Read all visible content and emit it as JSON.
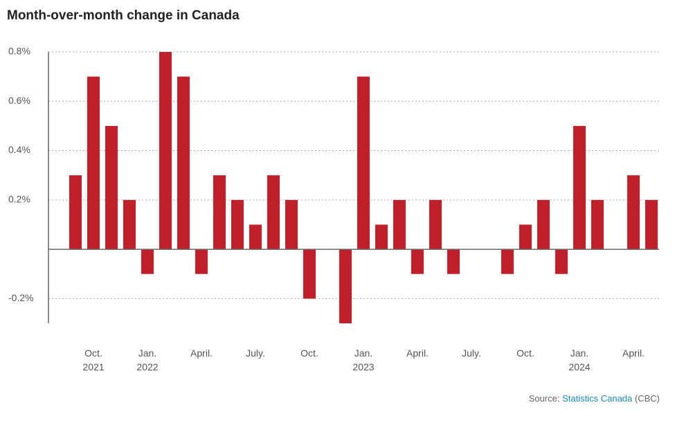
{
  "chart_data": {
    "type": "bar",
    "title": "Month-over-month change in Canada",
    "categories": [
      null,
      "Oct. 2021",
      null,
      null,
      "Jan. 2022",
      null,
      null,
      "April.",
      null,
      null,
      "July.",
      null,
      null,
      "Oct.",
      null,
      null,
      "Jan. 2023",
      null,
      null,
      "April.",
      null,
      null,
      "July.",
      null,
      null,
      "Oct.",
      null,
      null,
      "Jan. 2024",
      null,
      null,
      "April.",
      null
    ],
    "values": [
      0.3,
      0.7,
      0.5,
      0.2,
      -0.1,
      0.8,
      0.7,
      -0.1,
      0.3,
      0.2,
      0.1,
      0.3,
      0.2,
      -0.2,
      0,
      -0.3,
      0.7,
      0.1,
      0.2,
      -0.1,
      0.2,
      -0.1,
      0,
      0,
      -0.1,
      0.1,
      0.2,
      -0.1,
      0.5,
      0.2,
      0,
      0.3,
      0.2
    ],
    "color": "#c0202a",
    "ylim": [
      -0.3,
      0.8
    ],
    "yticks": [
      {
        "value": -0.2,
        "label": "-0.2%"
      },
      {
        "value": 0.2,
        "label": "0.2%"
      },
      {
        "value": 0.4,
        "label": "0.4%"
      },
      {
        "value": 0.6,
        "label": "0.6%"
      },
      {
        "value": 0.8,
        "label": "0.8%"
      }
    ],
    "grid": true,
    "source": {
      "prefix": "Source:",
      "link": "Statistics Canada",
      "suffix": "(CBC)"
    }
  }
}
